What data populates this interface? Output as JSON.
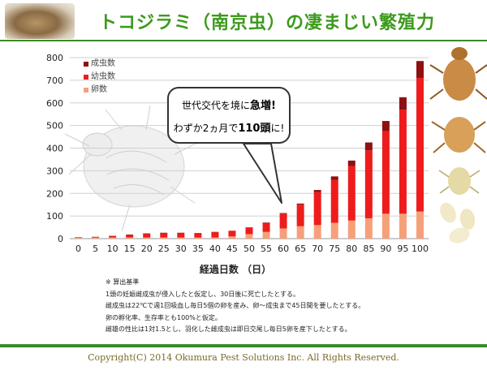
{
  "header": {
    "title": "トコジラミ（南京虫）の凄まじい繁殖力"
  },
  "callout": {
    "line1_prefix": "世代交代を境に",
    "line1_emphasis": "急増!",
    "line2_prefix": "わずか2ヵ月で",
    "line2_emphasis": "110頭",
    "line2_suffix": "に!"
  },
  "notes": {
    "heading": "※ 算出基準",
    "lines": [
      "1頭の妊娠雌成虫が侵入したと仮定し、30日後に死亡したとする。",
      "雌成虫は22℃で週1回吸血し毎日5個の卵を産み、卵～成虫まで45日間を要したとする。",
      "卵の孵化率、生存率とも100%と仮定。",
      "雌雄の性比は1対1.5とし、羽化した雌成虫は即日交尾し毎日5卵を産下したとする。"
    ]
  },
  "footer": {
    "copyright": "Copyright(C)  2014  Okumura Pest Solutions Inc.  All Rights Reserved."
  },
  "colors": {
    "adult": "#8e1010",
    "nymph": "#ee1c1c",
    "egg": "#f6a07a",
    "title": "#3c9a1c",
    "rule": "#3a8a26"
  },
  "chart_data": {
    "type": "bar",
    "stacked": true,
    "xlabel": "経過日数 （日）",
    "ylabel": "",
    "ylim": [
      0,
      800
    ],
    "yticks": [
      0,
      100,
      200,
      300,
      400,
      500,
      600,
      700,
      800
    ],
    "grid": true,
    "legend_position": "top-left",
    "categories": [
      "0",
      "5",
      "10",
      "15",
      "20",
      "25",
      "30",
      "35",
      "40",
      "45",
      "50",
      "55",
      "60",
      "65",
      "70",
      "75",
      "80",
      "85",
      "90",
      "95",
      "100"
    ],
    "series": [
      {
        "name": "成虫数",
        "values": [
          1,
          1,
          1,
          1,
          1,
          1,
          1,
          0,
          0,
          0,
          0,
          1,
          3,
          5,
          10,
          15,
          25,
          35,
          45,
          55,
          75
        ]
      },
      {
        "name": "幼虫数",
        "values": [
          0,
          2,
          6,
          12,
          17,
          20,
          20,
          20,
          25,
          25,
          30,
          40,
          65,
          95,
          145,
          190,
          240,
          300,
          365,
          460,
          590
        ]
      },
      {
        "name": "卵数",
        "values": [
          5,
          5,
          5,
          5,
          5,
          5,
          5,
          5,
          5,
          10,
          20,
          30,
          45,
          55,
          60,
          70,
          80,
          90,
          110,
          110,
          120
        ]
      }
    ]
  }
}
